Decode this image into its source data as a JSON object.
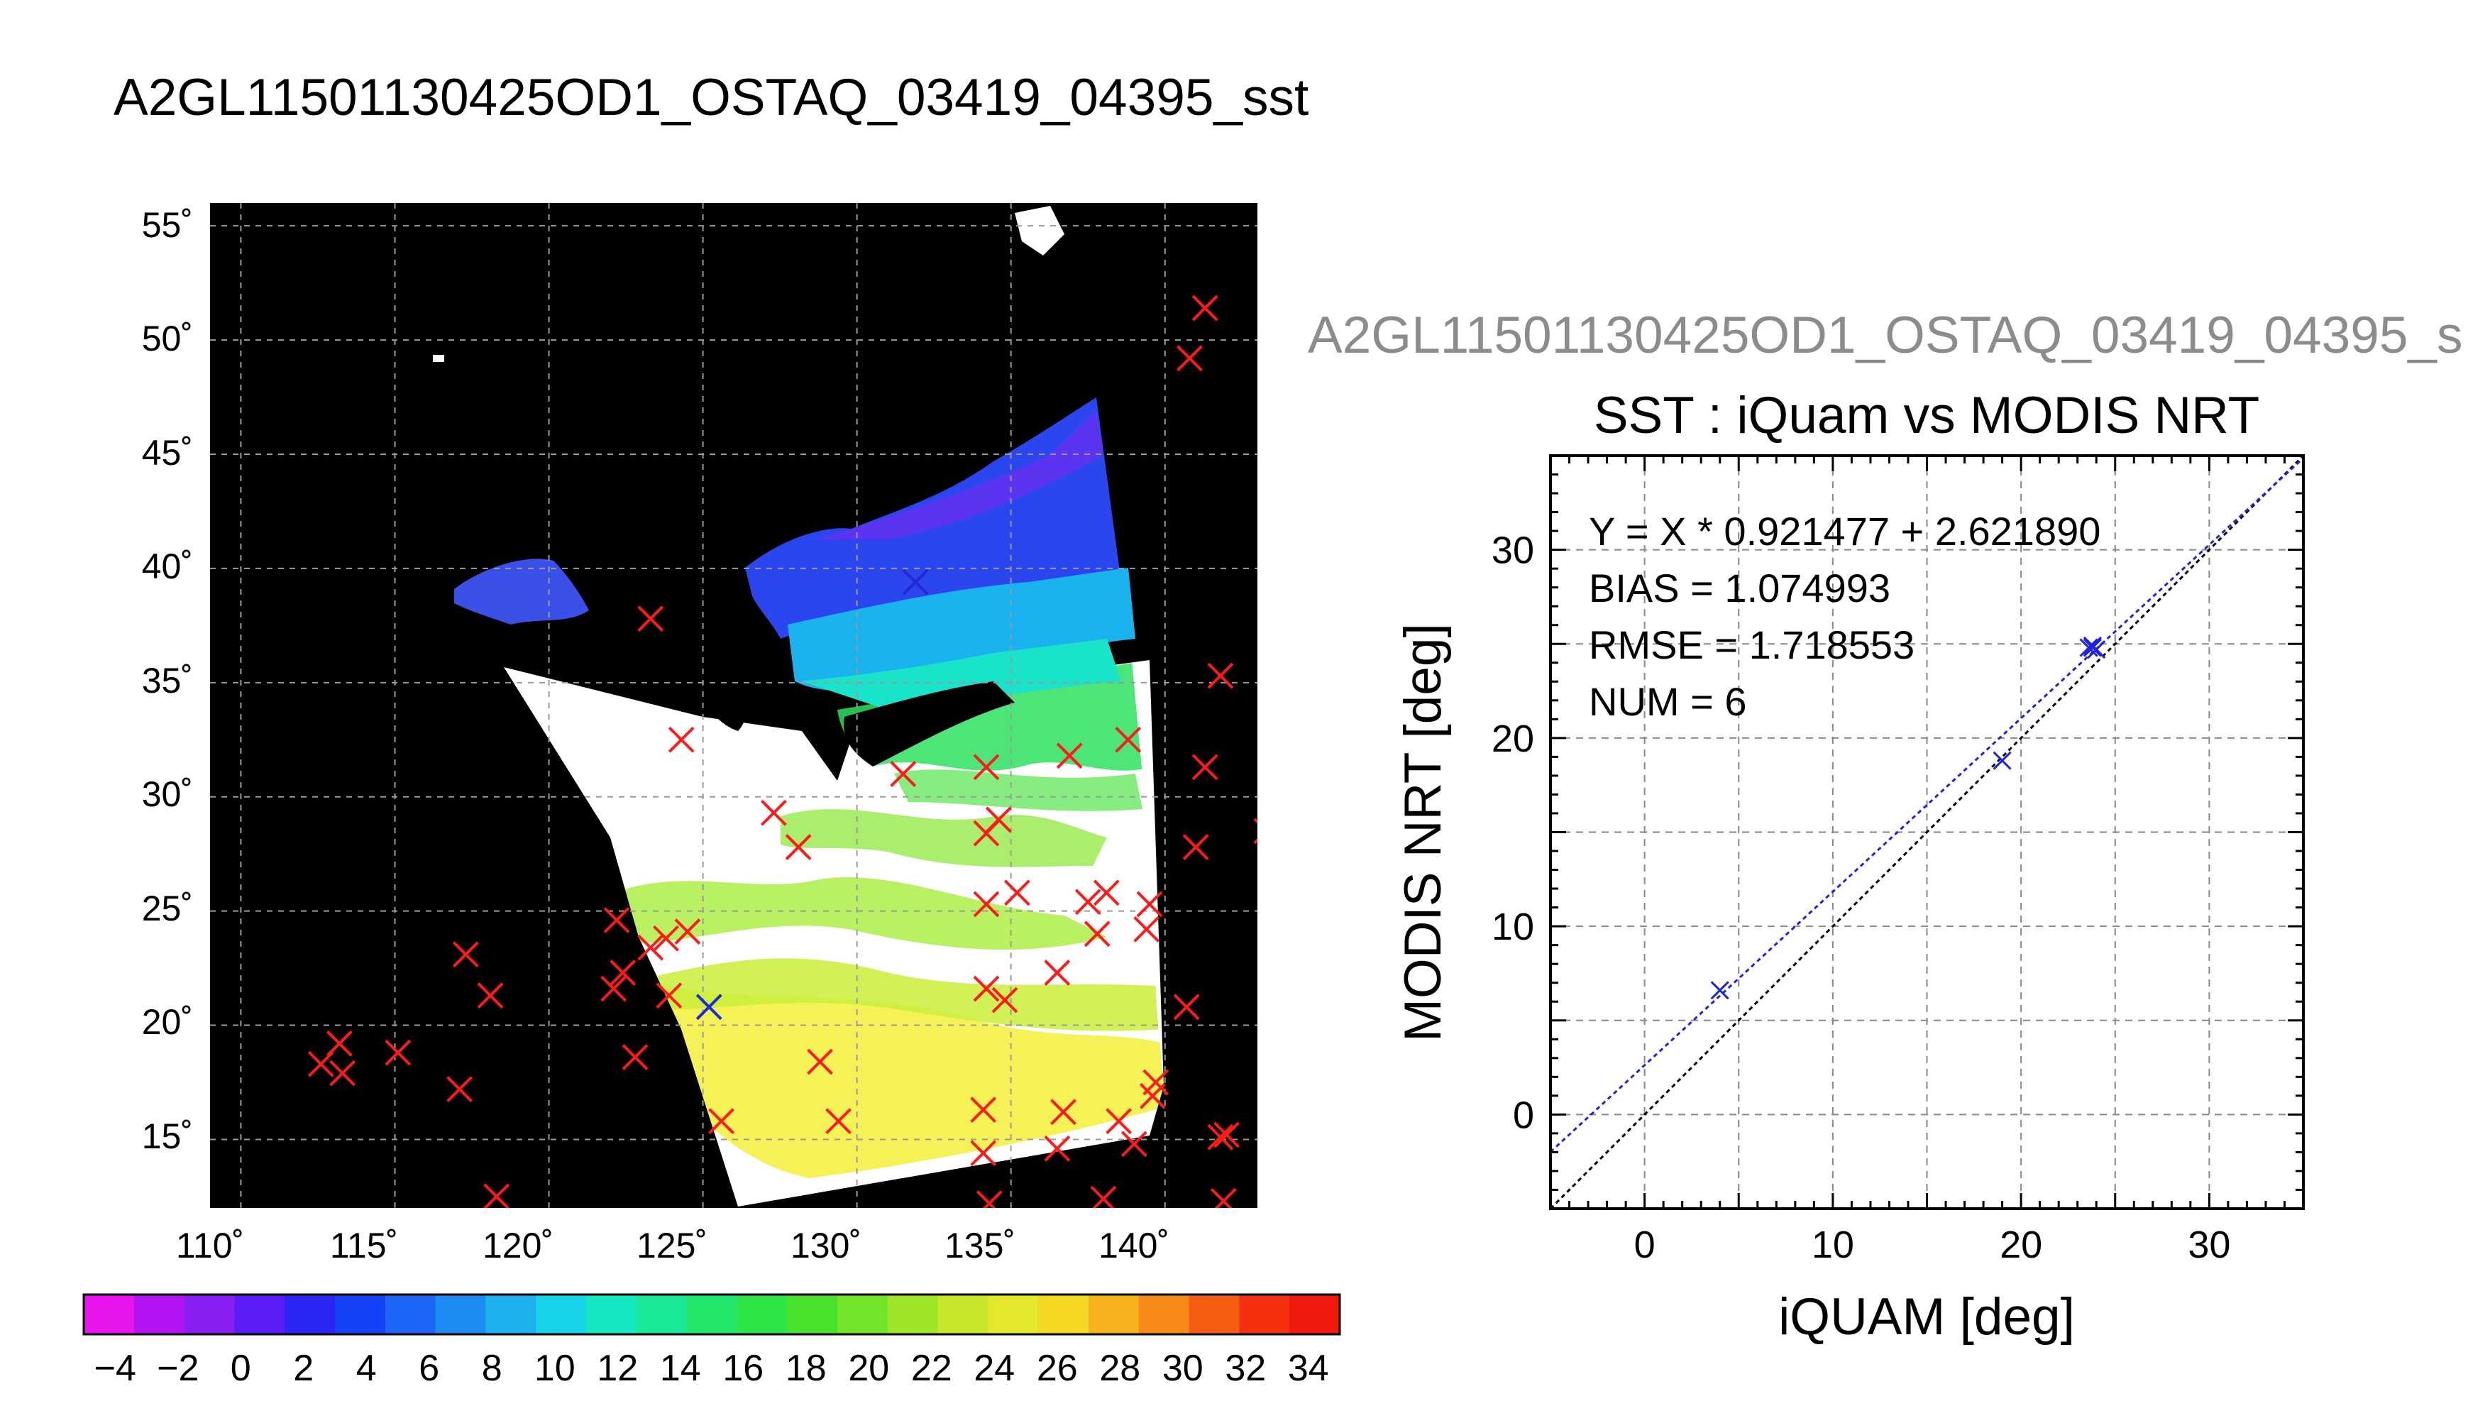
{
  "map_panel": {
    "title": "A2GL11501130425OD1_OSTAQ_03419_04395_sst",
    "lat_ticks": [
      "15˚",
      "20˚",
      "25˚",
      "30˚",
      "35˚",
      "40˚",
      "45˚",
      "50˚",
      "55˚"
    ],
    "lon_ticks": [
      "110˚",
      "115˚",
      "120˚",
      "125˚",
      "130˚",
      "135˚",
      "140˚"
    ],
    "colorbar_labels": [
      "−4",
      "−2",
      "0",
      "2",
      "4",
      "6",
      "8",
      "10",
      "12",
      "14",
      "16",
      "18",
      "20",
      "22",
      "24",
      "26",
      "28",
      "30",
      "32",
      "34"
    ],
    "colors": {
      "land": "#000000",
      "no_data": "#ffffff",
      "marker_red": "#ff1a1a",
      "marker_blue": "#1a2bd8"
    }
  },
  "scatter_panel": {
    "subtitle": "A2GL11501130425OD1_OSTAQ_03419_04395_s",
    "stats": {
      "fit": "Y = X * 0.921477 + 2.621890",
      "bias": "BIAS = 1.074993",
      "rmse": "RMSE = 1.718553",
      "num": "NUM = 6"
    }
  },
  "chart_data": [
    {
      "type": "heatmap",
      "title": "A2GL11501130425OD1_OSTAQ_03419_04395_sst",
      "xlim": [
        109,
        143
      ],
      "ylim": [
        12,
        56
      ],
      "colorbar": {
        "range": [
          -5,
          35
        ],
        "step": 2
      },
      "grid": true,
      "iquam_points_red": [
        [
          131.9,
          39.4
        ],
        [
          123.3,
          37.8
        ],
        [
          124.3,
          32.5
        ],
        [
          134.2,
          31.3
        ],
        [
          136.9,
          31.8
        ],
        [
          138.8,
          32.5
        ],
        [
          141.3,
          31.3
        ],
        [
          141.8,
          35.3
        ],
        [
          140.8,
          49.2
        ],
        [
          141.3,
          51.4
        ],
        [
          143.3,
          28.5
        ],
        [
          141.0,
          27.8
        ],
        [
          127.3,
          29.3
        ],
        [
          128.1,
          27.8
        ],
        [
          131.5,
          31.0
        ],
        [
          134.6,
          29.0
        ],
        [
          135.2,
          25.8
        ],
        [
          134.2,
          28.4
        ],
        [
          134.2,
          25.3
        ],
        [
          137.5,
          25.4
        ],
        [
          137.8,
          24.0
        ],
        [
          138.1,
          25.8
        ],
        [
          139.5,
          25.3
        ],
        [
          139.4,
          24.2
        ],
        [
          136.5,
          22.3
        ],
        [
          134.2,
          21.6
        ],
        [
          134.8,
          21.1
        ],
        [
          140.7,
          20.8
        ],
        [
          128.8,
          18.4
        ],
        [
          129.4,
          15.8
        ],
        [
          134.1,
          16.3
        ],
        [
          134.1,
          14.4
        ],
        [
          136.7,
          16.2
        ],
        [
          136.5,
          14.6
        ],
        [
          138.5,
          15.8
        ],
        [
          139.0,
          14.8
        ],
        [
          139.6,
          16.9
        ],
        [
          139.7,
          17.5
        ],
        [
          141.8,
          15.1
        ],
        [
          142.0,
          15.2
        ],
        [
          141.9,
          12.3
        ],
        [
          138.0,
          12.4
        ],
        [
          134.3,
          12.2
        ],
        [
          125.6,
          15.8
        ],
        [
          122.2,
          24.6
        ],
        [
          122.4,
          22.3
        ],
        [
          122.1,
          21.6
        ],
        [
          123.3,
          23.4
        ],
        [
          123.8,
          23.8
        ],
        [
          124.5,
          24.1
        ],
        [
          123.9,
          21.3
        ],
        [
          122.8,
          18.6
        ],
        [
          117.3,
          23.1
        ],
        [
          118.1,
          21.3
        ],
        [
          117.1,
          17.2
        ],
        [
          115.1,
          18.8
        ],
        [
          113.2,
          19.2
        ],
        [
          113.3,
          17.9
        ],
        [
          112.6,
          18.3
        ],
        [
          118.3,
          12.5
        ]
      ],
      "matchup_points_blue": [
        [
          131.9,
          39.4
        ],
        [
          125.2,
          20.8
        ]
      ]
    },
    {
      "type": "scatter",
      "title": "SST : iQuam vs MODIS NRT",
      "xlabel": "iQUAM [deg]",
      "ylabel": "MODIS NRT [deg]",
      "xlim": [
        -5,
        35
      ],
      "ylim": [
        -5,
        35
      ],
      "xticks": [
        0,
        10,
        20,
        30
      ],
      "yticks": [
        0,
        10,
        20,
        30
      ],
      "grid": true,
      "points": [
        [
          4.0,
          6.6
        ],
        [
          19.0,
          18.8
        ],
        [
          23.6,
          24.8
        ],
        [
          23.8,
          24.9
        ],
        [
          24.0,
          24.7
        ],
        [
          23.8,
          24.8
        ]
      ],
      "fit_line": {
        "slope": 0.921477,
        "intercept": 2.62189,
        "color": "#2323d6"
      },
      "identity_line": {
        "slope": 1,
        "intercept": 0,
        "color": "#000000"
      }
    }
  ]
}
